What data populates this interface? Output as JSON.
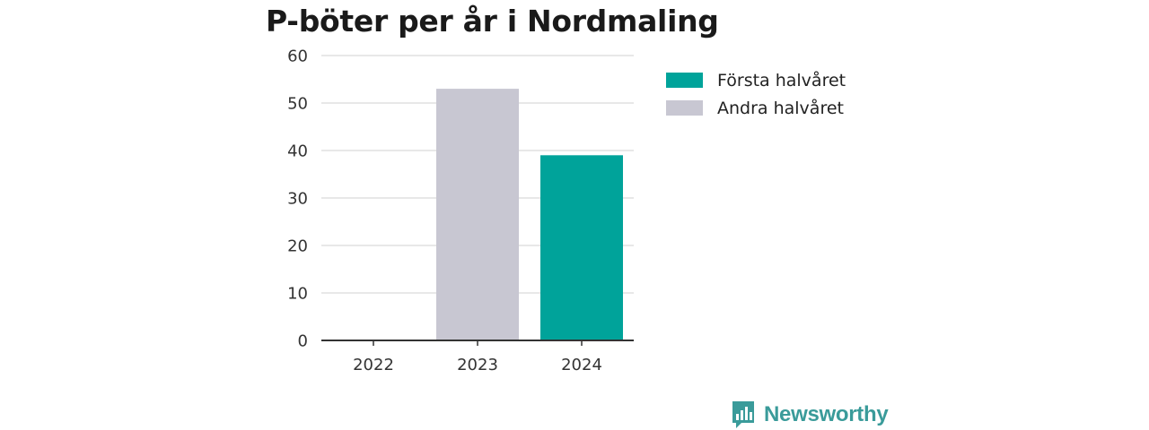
{
  "chart_data": {
    "type": "bar",
    "title": "P-böter per år i Nordmaling",
    "xlabel": "",
    "ylabel": "",
    "categories": [
      "2022",
      "2023",
      "2024"
    ],
    "series": [
      {
        "name": "Första halvåret",
        "color": "#00a39a",
        "values": [
          0,
          0,
          39
        ]
      },
      {
        "name": "Andra halvåret",
        "color": "#c8c7d2",
        "values": [
          0,
          53,
          0
        ]
      }
    ],
    "stacked": true,
    "ylim": [
      0,
      60
    ],
    "yticks": [
      0,
      10,
      20,
      30,
      40,
      50,
      60
    ],
    "grid": true,
    "legend_position": "right"
  },
  "brand": {
    "name": "Newsworthy",
    "logo_icon": "bar-chart-bubble-icon"
  }
}
